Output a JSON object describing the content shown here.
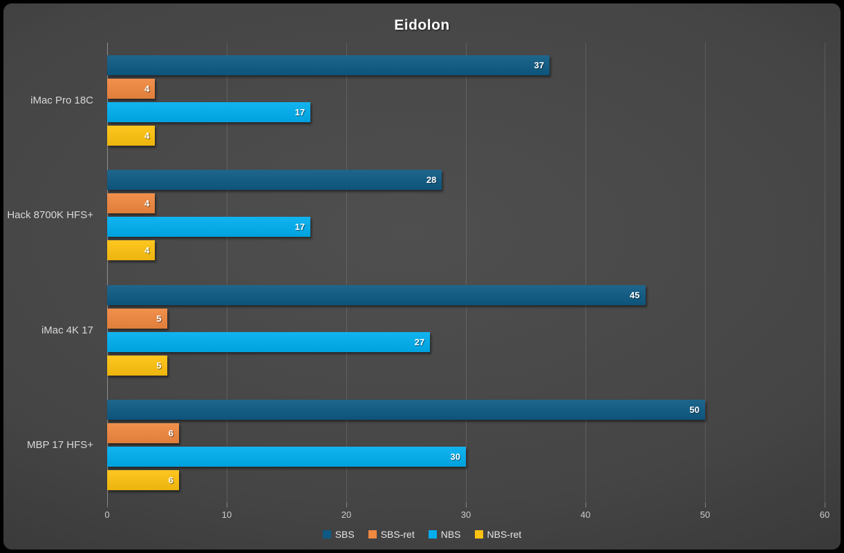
{
  "chart_data": {
    "type": "bar",
    "orientation": "horizontal",
    "title": "Eidolon",
    "categories": [
      "iMac Pro 18C",
      "Hack 8700K HFS+",
      "iMac 4K 17",
      "MBP 17 HFS+"
    ],
    "series": [
      {
        "name": "SBS",
        "color": "#0e5a84",
        "values": [
          37,
          28,
          45,
          50
        ]
      },
      {
        "name": "SBS-ret",
        "color": "#f0883f",
        "values": [
          4,
          4,
          5,
          6
        ]
      },
      {
        "name": "NBS",
        "color": "#00aeef",
        "values": [
          17,
          17,
          27,
          30
        ]
      },
      {
        "name": "NBS-ret",
        "color": "#fec20f",
        "values": [
          4,
          4,
          5,
          6
        ]
      }
    ],
    "xlabel": "",
    "ylabel": "",
    "xlim": [
      0,
      60
    ],
    "xticks": [
      0,
      10,
      20,
      30,
      40,
      50,
      60
    ],
    "grid": true,
    "legend_position": "bottom",
    "value_label_position": "inside-end",
    "colors": {
      "frame": "#000000",
      "background_center": "#4f4f4f",
      "background_edge": "#1f1f1f",
      "title_text": "#ffffff",
      "category_text": "#d9d9d9",
      "axis_tick_text": "#cdcdcd",
      "value_label_text": "#ffffff",
      "gridline": "rgba(255,255,255,0.13)",
      "axis_line": "rgba(255,255,255,0.40)"
    }
  }
}
